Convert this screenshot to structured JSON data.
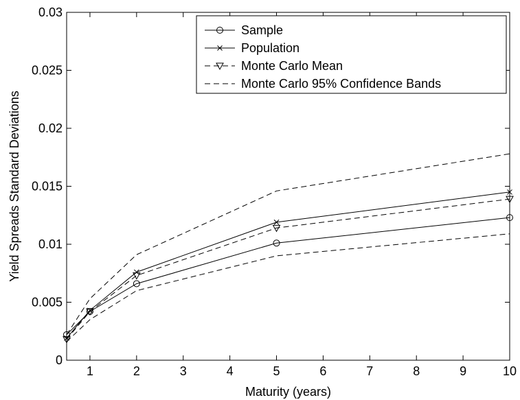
{
  "chart_data": {
    "type": "line",
    "xlabel": "Maturity (years)",
    "ylabel": "Yield Spreads Standard Deviations",
    "xlim": [
      0.5,
      10
    ],
    "ylim": [
      0,
      0.03
    ],
    "x_ticks": [
      1,
      2,
      3,
      4,
      5,
      6,
      7,
      8,
      9,
      10
    ],
    "x_tick_labels": [
      "1",
      "2",
      "3",
      "4",
      "5",
      "6",
      "7",
      "8",
      "9",
      "10"
    ],
    "y_ticks": [
      0,
      0.005,
      0.01,
      0.015,
      0.02,
      0.025,
      0.03
    ],
    "y_tick_labels": [
      "0",
      "0.005",
      "0.01",
      "0.015",
      "0.02",
      "0.025",
      "0.03"
    ],
    "grid": false,
    "legend_position": "top-right",
    "x": [
      0.5,
      1,
      2,
      5,
      10
    ],
    "series": [
      {
        "name": "Sample",
        "style": "solid",
        "marker": "circle",
        "values": [
          0.0022,
          0.0042,
          0.0066,
          0.0101,
          0.0123
        ]
      },
      {
        "name": "Population",
        "style": "solid",
        "marker": "x",
        "values": [
          0.0019,
          0.0043,
          0.0076,
          0.0119,
          0.0145
        ]
      },
      {
        "name": "Monte Carlo Mean",
        "style": "dashed",
        "marker": "triangle-down",
        "values": [
          0.0018,
          0.0042,
          0.0073,
          0.0114,
          0.0139
        ]
      },
      {
        "name": "Monte Carlo 95% Confidence Bands",
        "style": "dashed",
        "marker": "none",
        "values": [
          0.0022,
          0.0053,
          0.0091,
          0.0146,
          0.0178
        ]
      },
      {
        "name": "",
        "style": "dashed",
        "marker": "none",
        "legend": false,
        "values": [
          0.0016,
          0.0035,
          0.006,
          0.009,
          0.0109
        ]
      }
    ]
  }
}
